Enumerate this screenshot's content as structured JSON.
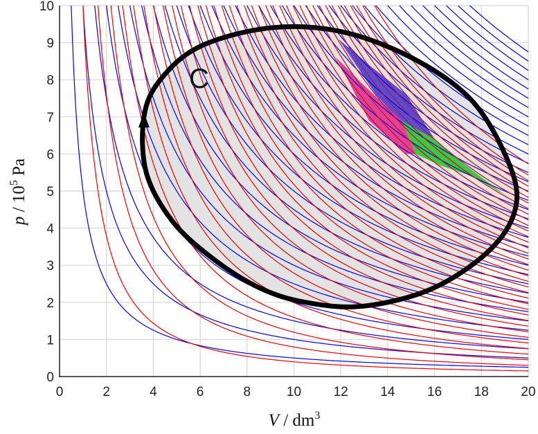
{
  "chart_data": {
    "type": "line",
    "title": "",
    "xlabel": {
      "symbol": "V",
      "sep": " / ",
      "unit": "dm",
      "unit_exp": "3"
    },
    "ylabel": {
      "symbol": "p",
      "sep": " / ",
      "unit_prefix": "10",
      "unit_exp": "5",
      "unit": " Pa"
    },
    "xlim": [
      0,
      20
    ],
    "ylim": [
      0,
      10
    ],
    "xticks": [
      "0",
      "2",
      "4",
      "6",
      "8",
      "10",
      "12",
      "14",
      "16",
      "18",
      "20"
    ],
    "yticks": [
      "0",
      "1",
      "2",
      "3",
      "4",
      "5",
      "6",
      "7",
      "8",
      "9",
      "10"
    ],
    "grid": true,
    "isotherms": {
      "color": "#0000ee",
      "pV_constants": [
        5,
        10,
        15,
        20,
        25,
        30,
        35,
        40,
        45,
        50,
        55,
        60,
        65,
        70,
        75,
        80,
        85,
        90,
        95,
        100,
        105,
        110,
        115,
        120,
        125,
        130,
        135,
        140,
        145,
        150,
        155,
        160,
        165,
        170,
        175
      ]
    },
    "adiabats": {
      "color": "#ee0000",
      "gamma": 1.4,
      "pV_gamma_constants": [
        10,
        20,
        30,
        40,
        50,
        60,
        70,
        80,
        90,
        100,
        110,
        120,
        130,
        140,
        150,
        160,
        170,
        180,
        190,
        200,
        210,
        220,
        230,
        240,
        250,
        260,
        270,
        280,
        290,
        300,
        310,
        320,
        330,
        340,
        350,
        360,
        380
      ]
    },
    "cycle": {
      "label": "C",
      "fill": "#e3e3e3",
      "stroke": "#000000",
      "points": [
        [
          13.0,
          1.9
        ],
        [
          16.0,
          2.4
        ],
        [
          18.5,
          3.5
        ],
        [
          19.5,
          4.7
        ],
        [
          19.0,
          6.0
        ],
        [
          17.5,
          7.5
        ],
        [
          15.0,
          8.6
        ],
        [
          12.0,
          9.3
        ],
        [
          9.0,
          9.4
        ],
        [
          6.0,
          8.9
        ],
        [
          4.3,
          8.0
        ],
        [
          3.6,
          7.0
        ],
        [
          3.7,
          5.5
        ],
        [
          4.8,
          4.2
        ],
        [
          6.5,
          3.2
        ],
        [
          8.5,
          2.4
        ],
        [
          10.5,
          2.0
        ]
      ],
      "direction_marker_at": [
        3.6,
        6.9
      ]
    },
    "highlighted_regions": [
      {
        "color": "#5050dd",
        "points": [
          [
            11.9,
            9.1
          ],
          [
            13.2,
            8.4
          ],
          [
            14.8,
            7.6
          ],
          [
            16.0,
            6.4
          ],
          [
            15.3,
            6.4
          ],
          [
            14.5,
            6.9
          ],
          [
            13.5,
            7.6
          ]
        ]
      },
      {
        "color": "#dd4499",
        "points": [
          [
            11.8,
            8.6
          ],
          [
            12.9,
            7.9
          ],
          [
            14.6,
            6.9
          ],
          [
            15.2,
            6.0
          ],
          [
            14.8,
            6.0
          ],
          [
            13.2,
            6.9
          ]
        ]
      },
      {
        "color": "#33cc44",
        "points": [
          [
            14.6,
            6.9
          ],
          [
            16.0,
            6.4
          ],
          [
            17.3,
            5.7
          ],
          [
            19.0,
            4.9
          ],
          [
            17.6,
            5.4
          ],
          [
            16.2,
            5.7
          ],
          [
            15.2,
            6.0
          ]
        ]
      }
    ]
  }
}
